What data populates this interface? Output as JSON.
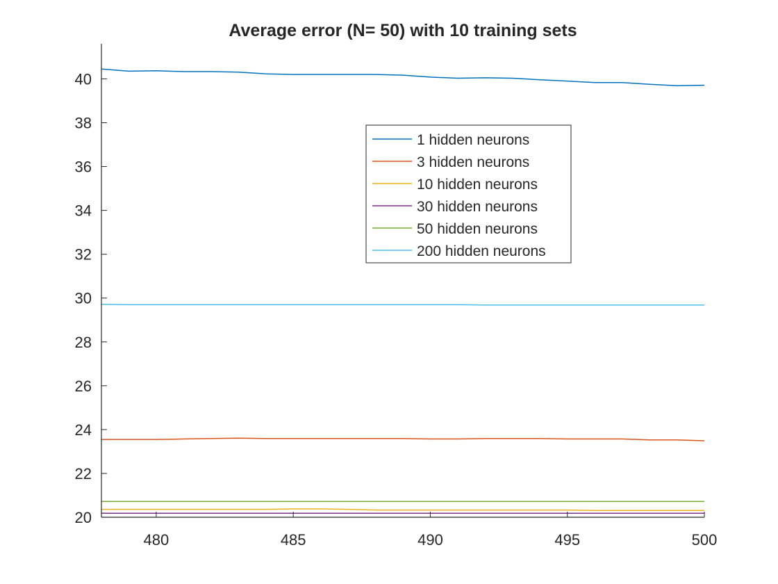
{
  "chart_data": {
    "type": "line",
    "title": "Average error (N= 50) with 10 training sets",
    "xlabel": "",
    "ylabel": "",
    "xlim": [
      478,
      500
    ],
    "ylim": [
      20,
      41.6
    ],
    "xticks": [
      480,
      485,
      490,
      495,
      500
    ],
    "yticks": [
      20,
      22,
      24,
      26,
      28,
      30,
      32,
      34,
      36,
      38,
      40
    ],
    "grid": false,
    "legend_position": "upper-center-right",
    "x": [
      478,
      479,
      480,
      481,
      482,
      483,
      484,
      485,
      486,
      487,
      488,
      489,
      490,
      491,
      492,
      493,
      494,
      495,
      496,
      497,
      498,
      499,
      500
    ],
    "series": [
      {
        "name": "1 hidden neurons",
        "color": "#0072BD",
        "values": [
          40.45,
          40.35,
          40.37,
          40.33,
          40.33,
          40.31,
          40.23,
          40.2,
          40.2,
          40.2,
          40.2,
          40.17,
          40.08,
          40.03,
          40.05,
          40.03,
          39.96,
          39.9,
          39.83,
          39.83,
          39.75,
          39.69,
          39.71
        ]
      },
      {
        "name": "3 hidden neurons",
        "color": "#D95319",
        "values": [
          23.55,
          23.55,
          23.55,
          23.57,
          23.59,
          23.61,
          23.59,
          23.59,
          23.59,
          23.59,
          23.59,
          23.59,
          23.57,
          23.57,
          23.59,
          23.59,
          23.59,
          23.57,
          23.57,
          23.57,
          23.53,
          23.53,
          23.49
        ]
      },
      {
        "name": "10 hidden neurons",
        "color": "#EDB120",
        "values": [
          20.36,
          20.36,
          20.36,
          20.36,
          20.36,
          20.36,
          20.36,
          20.38,
          20.38,
          20.36,
          20.33,
          20.33,
          20.33,
          20.33,
          20.33,
          20.33,
          20.33,
          20.33,
          20.31,
          20.31,
          20.31,
          20.31,
          20.31
        ]
      },
      {
        "name": "30 hidden neurons",
        "color": "#7E2F8E",
        "values": [
          20.18,
          20.18,
          20.18,
          20.18,
          20.18,
          20.18,
          20.18,
          20.18,
          20.18,
          20.18,
          20.18,
          20.18,
          20.18,
          20.18,
          20.18,
          20.18,
          20.18,
          20.18,
          20.18,
          20.18,
          20.18,
          20.18,
          20.18
        ]
      },
      {
        "name": "50 hidden neurons",
        "color": "#77AC30",
        "values": [
          20.72,
          20.72,
          20.72,
          20.72,
          20.72,
          20.72,
          20.72,
          20.72,
          20.72,
          20.72,
          20.72,
          20.72,
          20.72,
          20.72,
          20.72,
          20.72,
          20.72,
          20.72,
          20.72,
          20.72,
          20.72,
          20.72,
          20.72
        ]
      },
      {
        "name": "200 hidden neurons",
        "color": "#4DBEEE",
        "values": [
          29.72,
          29.7,
          29.7,
          29.7,
          29.7,
          29.7,
          29.7,
          29.7,
          29.7,
          29.7,
          29.7,
          29.7,
          29.7,
          29.7,
          29.68,
          29.68,
          29.68,
          29.68,
          29.68,
          29.68,
          29.68,
          29.68,
          29.68
        ]
      }
    ]
  }
}
